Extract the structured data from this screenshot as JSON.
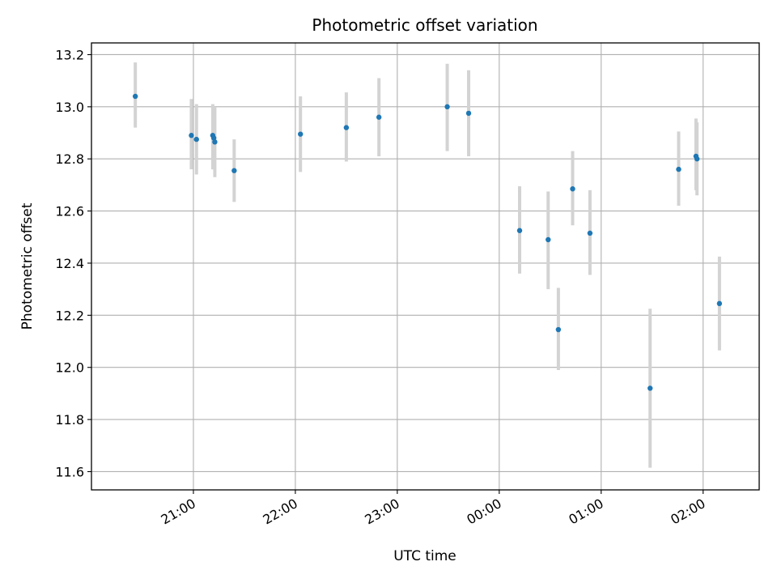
{
  "chart_data": {
    "type": "scatter",
    "title": "Photometric offset variation",
    "xlabel": "UTC time",
    "ylabel": "Photometric offset",
    "x_unit": "UTC hour of day (values past 24 are the following day)",
    "xlim": [
      20.0,
      26.55
    ],
    "ylim": [
      11.53,
      13.245
    ],
    "grid": true,
    "colors": {
      "point": "#1f77b4",
      "errorbar": "#d3d3d3"
    },
    "x_ticks": [
      {
        "value": 21,
        "label": "21:00"
      },
      {
        "value": 22,
        "label": "22:00"
      },
      {
        "value": 23,
        "label": "23:00"
      },
      {
        "value": 24,
        "label": "00:00"
      },
      {
        "value": 25,
        "label": "01:00"
      },
      {
        "value": 26,
        "label": "02:00"
      }
    ],
    "y_ticks": [
      {
        "value": 11.6,
        "label": "11.6"
      },
      {
        "value": 11.8,
        "label": "11.8"
      },
      {
        "value": 12.0,
        "label": "12.0"
      },
      {
        "value": 12.2,
        "label": "12.2"
      },
      {
        "value": 12.4,
        "label": "12.4"
      },
      {
        "value": 12.6,
        "label": "12.6"
      },
      {
        "value": 12.8,
        "label": "12.8"
      },
      {
        "value": 13.0,
        "label": "13.0"
      },
      {
        "value": 13.2,
        "label": "13.2"
      }
    ],
    "points": [
      {
        "x": 20.43,
        "y": 13.04,
        "lo": 12.92,
        "hi": 13.17
      },
      {
        "x": 20.98,
        "y": 12.89,
        "lo": 12.76,
        "hi": 13.03
      },
      {
        "x": 21.03,
        "y": 12.875,
        "lo": 12.74,
        "hi": 13.01
      },
      {
        "x": 21.19,
        "y": 12.89,
        "lo": 12.76,
        "hi": 13.01
      },
      {
        "x": 21.2,
        "y": 12.88,
        "lo": 12.76,
        "hi": 13.0
      },
      {
        "x": 21.21,
        "y": 12.865,
        "lo": 12.73,
        "hi": 13.0
      },
      {
        "x": 21.4,
        "y": 12.755,
        "lo": 12.635,
        "hi": 12.875
      },
      {
        "x": 22.05,
        "y": 12.895,
        "lo": 12.75,
        "hi": 13.04
      },
      {
        "x": 22.5,
        "y": 12.92,
        "lo": 12.79,
        "hi": 13.055
      },
      {
        "x": 22.82,
        "y": 12.96,
        "lo": 12.81,
        "hi": 13.11
      },
      {
        "x": 23.49,
        "y": 13.0,
        "lo": 12.83,
        "hi": 13.165
      },
      {
        "x": 23.7,
        "y": 12.975,
        "lo": 12.81,
        "hi": 13.14
      },
      {
        "x": 24.2,
        "y": 12.525,
        "lo": 12.36,
        "hi": 12.695
      },
      {
        "x": 24.48,
        "y": 12.49,
        "lo": 12.3,
        "hi": 12.675
      },
      {
        "x": 24.58,
        "y": 12.145,
        "lo": 11.99,
        "hi": 12.305
      },
      {
        "x": 24.72,
        "y": 12.685,
        "lo": 12.545,
        "hi": 12.83
      },
      {
        "x": 24.89,
        "y": 12.515,
        "lo": 12.355,
        "hi": 12.68
      },
      {
        "x": 25.48,
        "y": 11.92,
        "lo": 11.615,
        "hi": 12.225
      },
      {
        "x": 25.76,
        "y": 12.76,
        "lo": 12.62,
        "hi": 12.905
      },
      {
        "x": 25.93,
        "y": 12.81,
        "lo": 12.68,
        "hi": 12.955
      },
      {
        "x": 25.94,
        "y": 12.8,
        "lo": 12.66,
        "hi": 12.94
      },
      {
        "x": 26.16,
        "y": 12.245,
        "lo": 12.065,
        "hi": 12.425
      }
    ]
  }
}
